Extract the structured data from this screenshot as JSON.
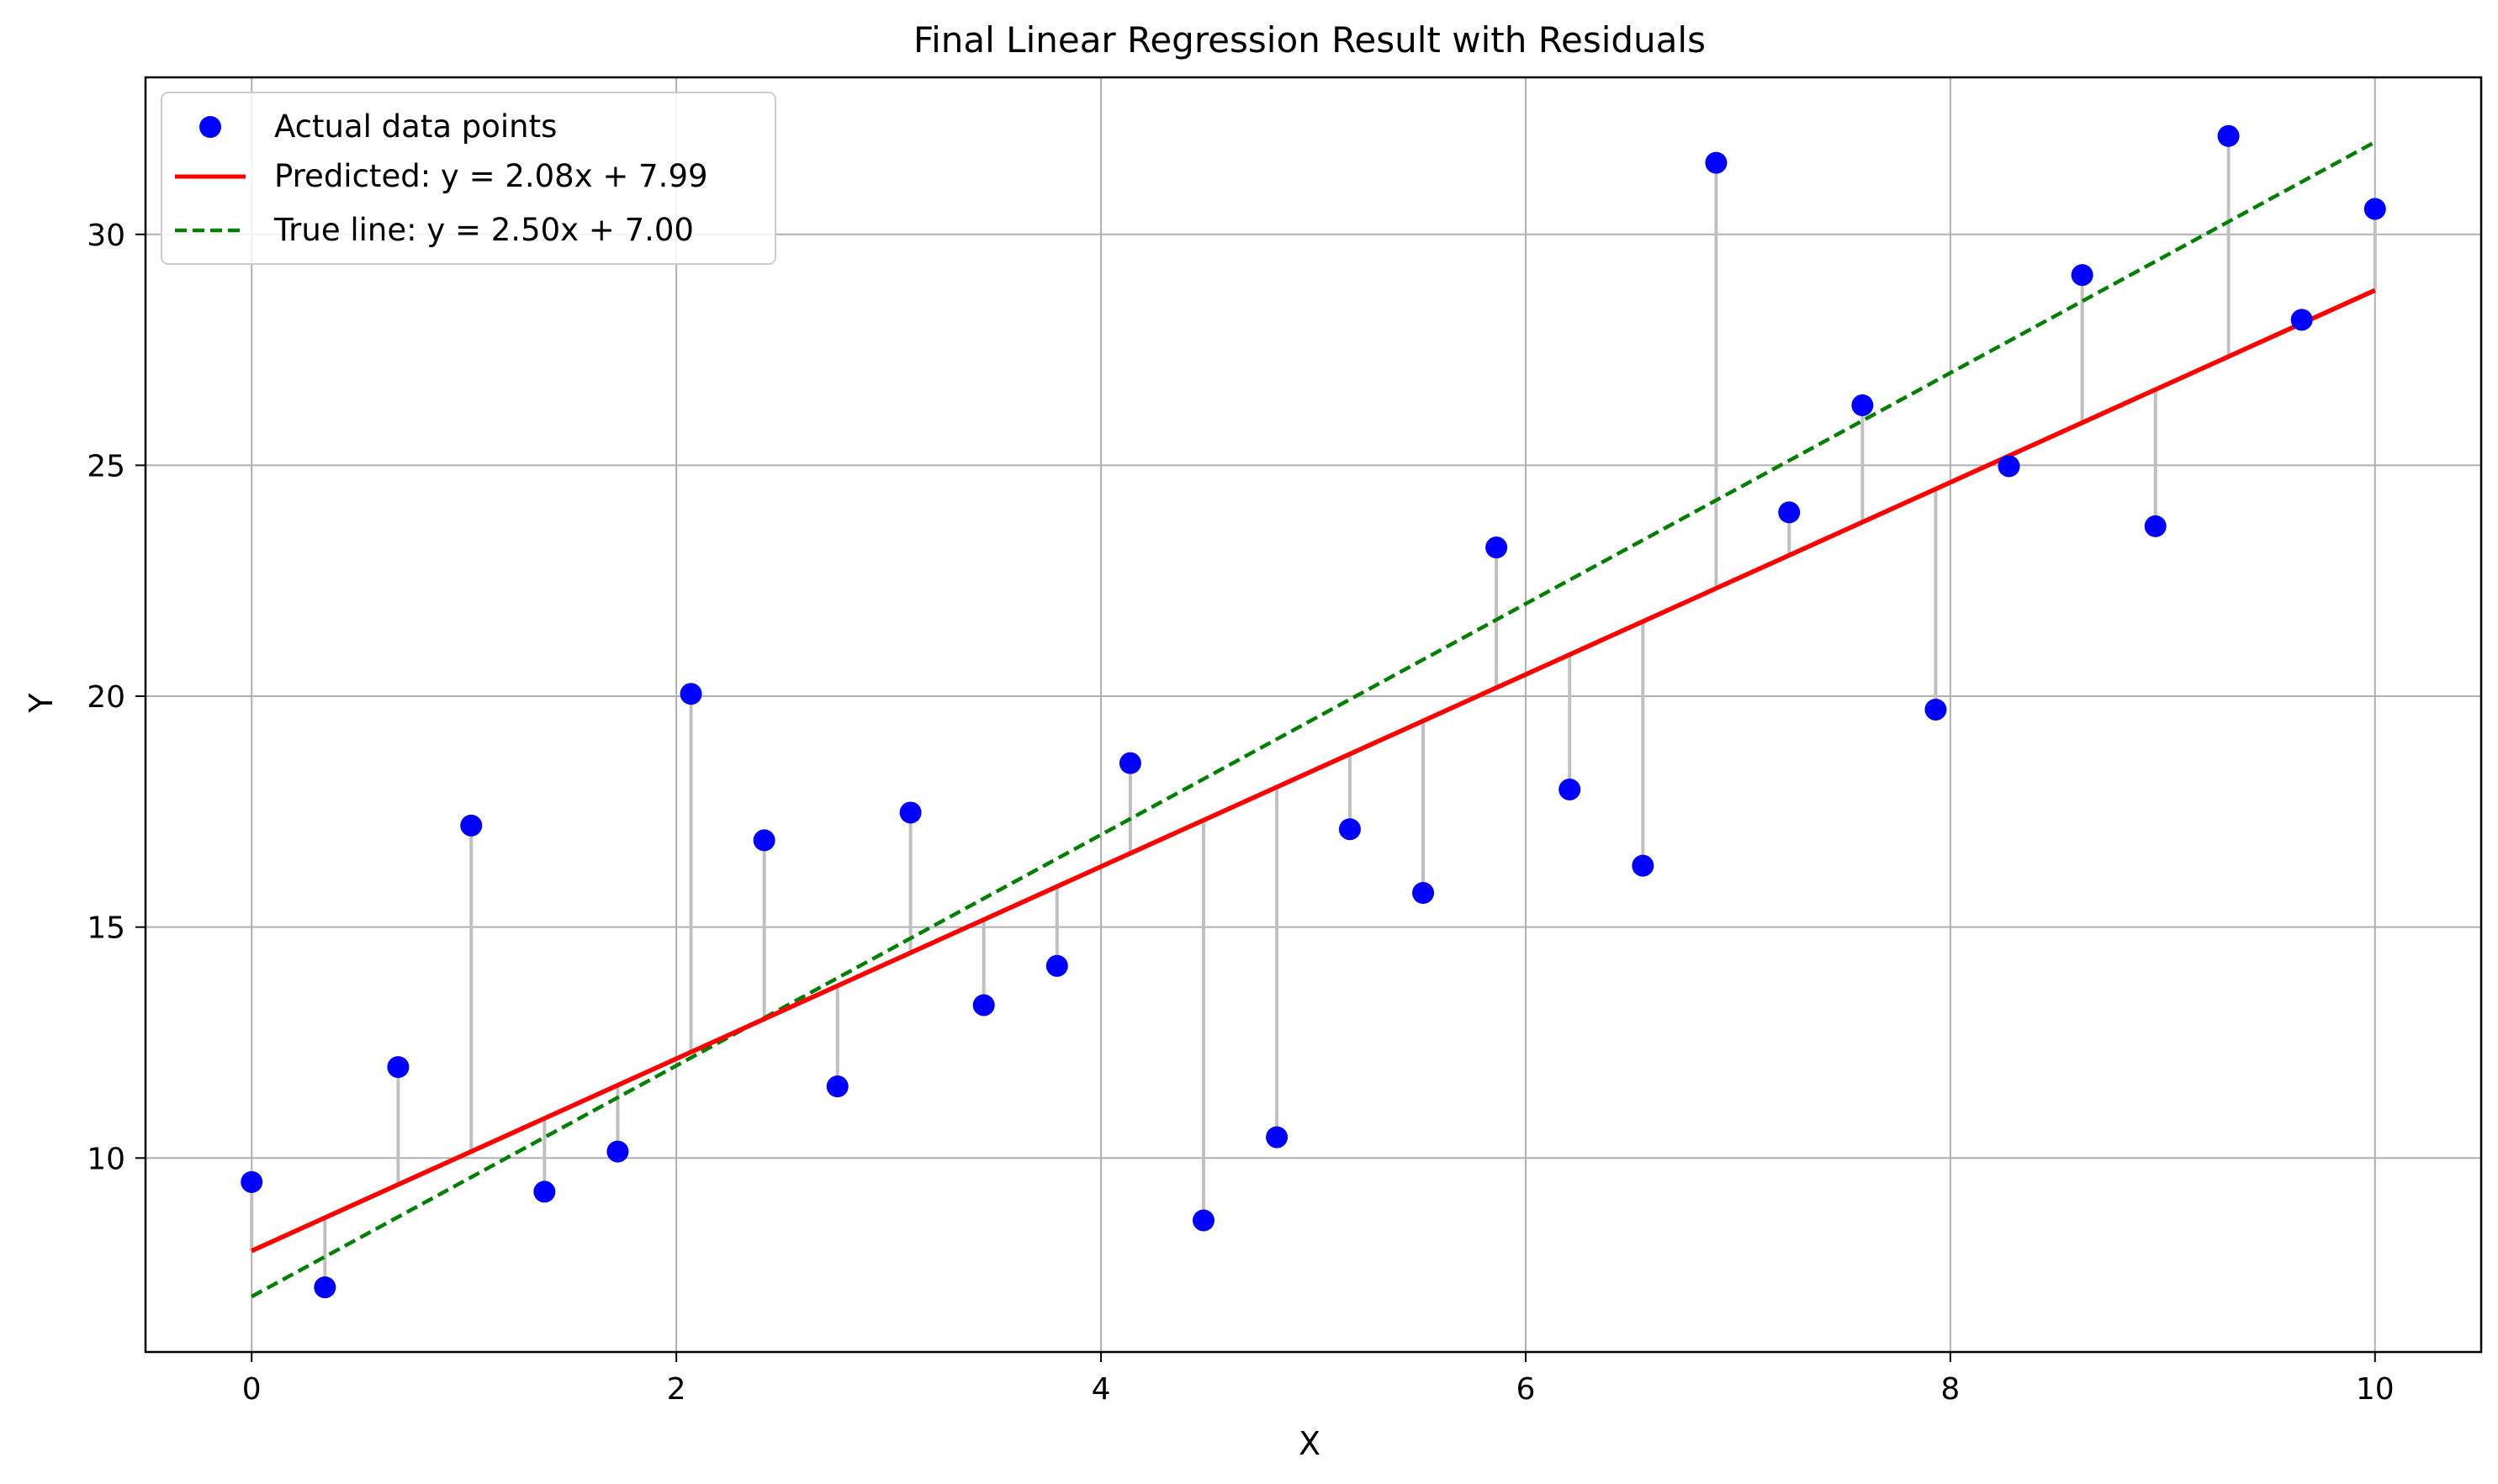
{
  "chart_data": {
    "type": "scatter",
    "title": "Final Linear Regression Result with Residuals",
    "xlabel": "X",
    "ylabel": "Y",
    "xlim": [
      -0.5,
      10.5
    ],
    "ylim": [
      5.8,
      33.4
    ],
    "xticks": [
      0,
      2,
      4,
      6,
      8,
      10
    ],
    "yticks": [
      10,
      15,
      20,
      25,
      30
    ],
    "grid": true,
    "legend_position": "top-left",
    "scatter": {
      "name": "Actual data points",
      "color": "#0000ff",
      "x": [
        0.0,
        0.345,
        0.69,
        1.034,
        1.379,
        1.724,
        2.069,
        2.414,
        2.759,
        3.103,
        3.448,
        3.793,
        4.138,
        4.483,
        4.828,
        5.172,
        5.517,
        5.862,
        6.207,
        6.552,
        6.897,
        7.241,
        7.586,
        7.931,
        8.276,
        8.621,
        8.966,
        9.31,
        9.655,
        10.0
      ],
      "y": [
        9.48,
        7.2,
        11.97,
        17.2,
        9.27,
        10.14,
        20.05,
        16.88,
        11.55,
        17.48,
        13.31,
        14.16,
        18.55,
        8.65,
        10.45,
        17.12,
        15.74,
        23.22,
        17.98,
        16.33,
        31.55,
        23.98,
        26.3,
        19.71,
        24.98,
        29.12,
        23.68,
        32.13,
        28.15,
        30.55
      ]
    },
    "predicted_line": {
      "name": "Predicted: y = 2.08x + 7.99",
      "slope": 2.08,
      "intercept": 7.99,
      "color": "#ff0000",
      "style": "solid"
    },
    "true_line": {
      "name": "True line: y = 2.50x + 7.00",
      "slope": 2.5,
      "intercept": 7.0,
      "color": "#008000",
      "style": "dashed"
    },
    "residual_color": "#c0c0c0"
  }
}
